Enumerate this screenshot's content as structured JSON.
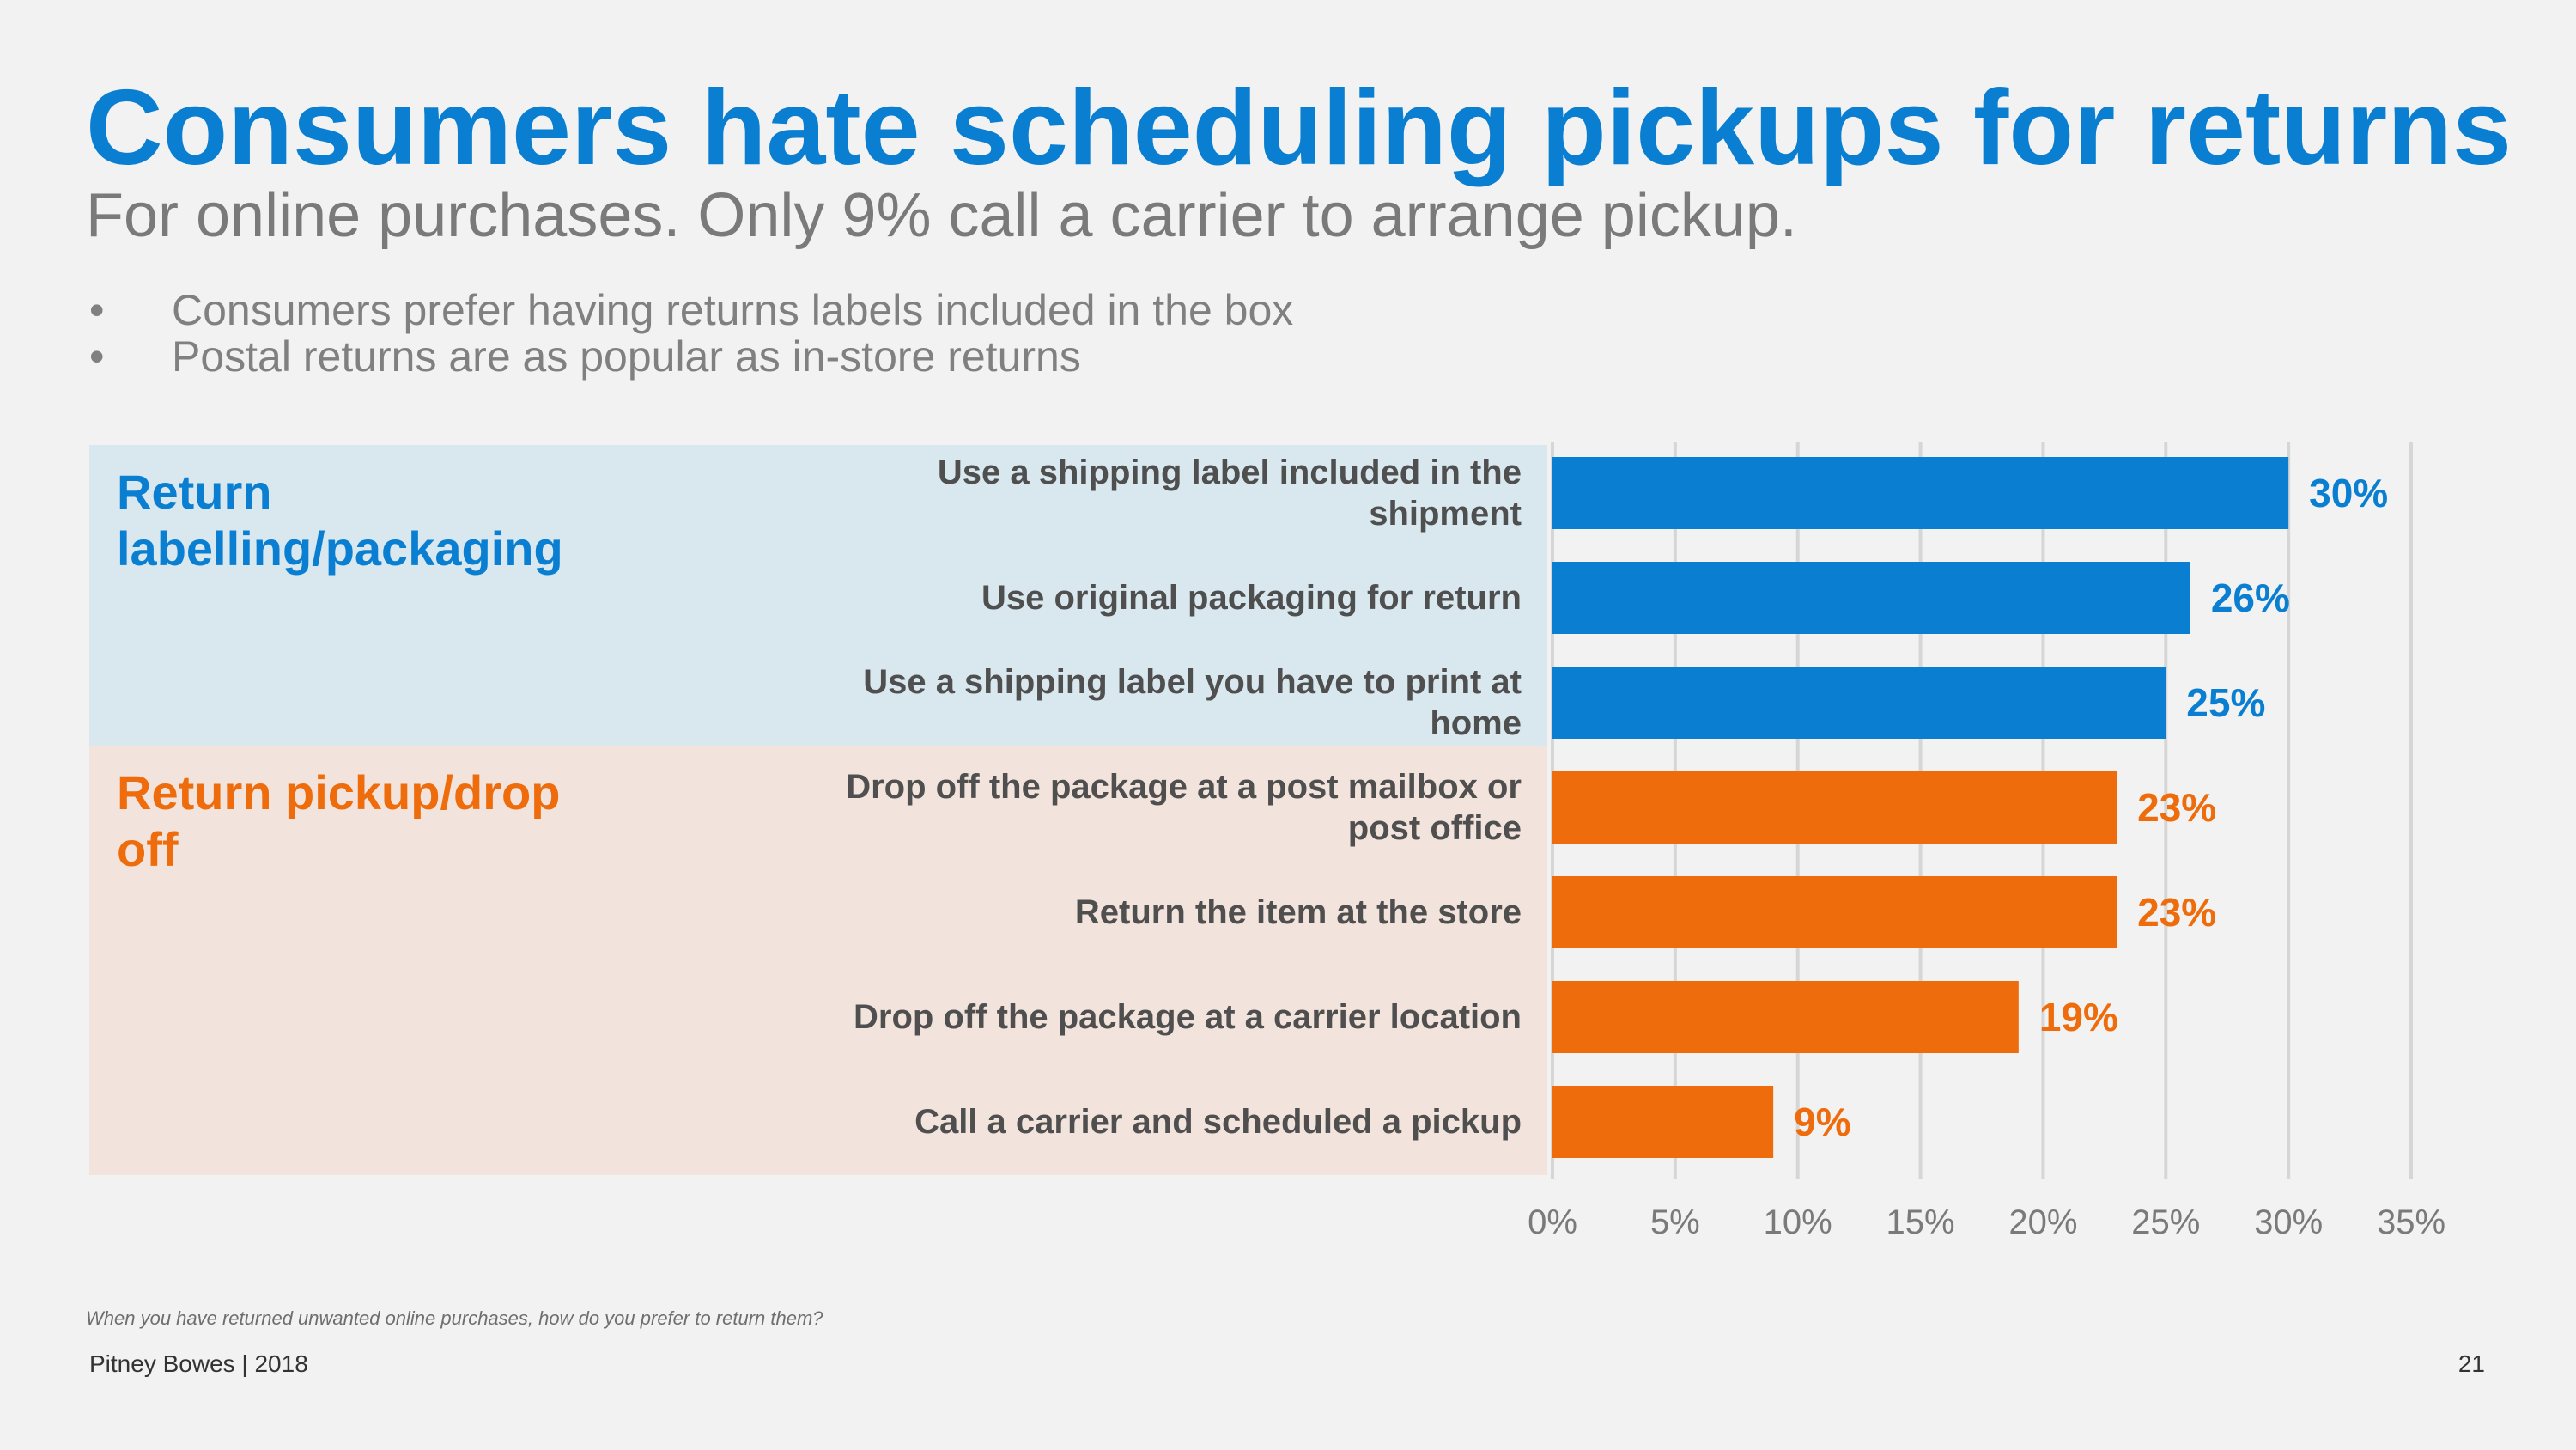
{
  "slide": {
    "title": "Consumers hate scheduling pickups for returns",
    "subtitle": "For online purchases. Only 9% call a carrier to arrange pickup.",
    "bullets": [
      "Consumers prefer having returns labels included in the box",
      "Postal returns are as popular as in-store returns"
    ],
    "bullet_symbol": "•",
    "footnote": "When you have returned unwanted online purchases, how do you prefer to return them?",
    "footer_left": "Pitney Bowes | 2018",
    "page_number": "21"
  },
  "groups": [
    {
      "label": "Return labelling/packaging",
      "color": "#0a7fd2",
      "band_color": "#d9e8ef"
    },
    {
      "label": "Return pickup/drop off",
      "color": "#ee6c0b",
      "band_color": "#f2e4dc"
    }
  ],
  "chart_data": {
    "type": "bar",
    "orientation": "horizontal",
    "categories": [
      "Use a shipping label included in the shipment",
      "Use original packaging for return",
      "Use a shipping label you have to print at home",
      "Drop off the package at a post mailbox or post office",
      "Return the item at the store",
      "Drop off the package at a carrier location",
      "Call a carrier and scheduled a pickup"
    ],
    "category_lines": [
      [
        "Use a shipping label included in the",
        "shipment"
      ],
      [
        "Use original packaging for return"
      ],
      [
        "Use a shipping label you have to print at",
        "home"
      ],
      [
        "Drop off the package at a post mailbox or",
        "post office"
      ],
      [
        "Return the item at the store"
      ],
      [
        "Drop off the package at a carrier location"
      ],
      [
        "Call a carrier and scheduled a pickup"
      ]
    ],
    "values": [
      30,
      26,
      25,
      23,
      23,
      19,
      9
    ],
    "data_labels": [
      "30%",
      "26%",
      "25%",
      "23%",
      "23%",
      "19%",
      "9%"
    ],
    "group_index": [
      0,
      0,
      0,
      1,
      1,
      1,
      1
    ],
    "xlim": [
      0,
      35
    ],
    "xticks": [
      0,
      5,
      10,
      15,
      20,
      25,
      30,
      35
    ],
    "xtick_labels": [
      "0%",
      "5%",
      "10%",
      "15%",
      "20%",
      "25%",
      "30%",
      "35%"
    ],
    "grid": true,
    "colors": {
      "blue": "#0a7fd2",
      "orange": "#ee6c0b",
      "grid": "#d6d6d6",
      "tick": "#7a7a7a"
    }
  }
}
